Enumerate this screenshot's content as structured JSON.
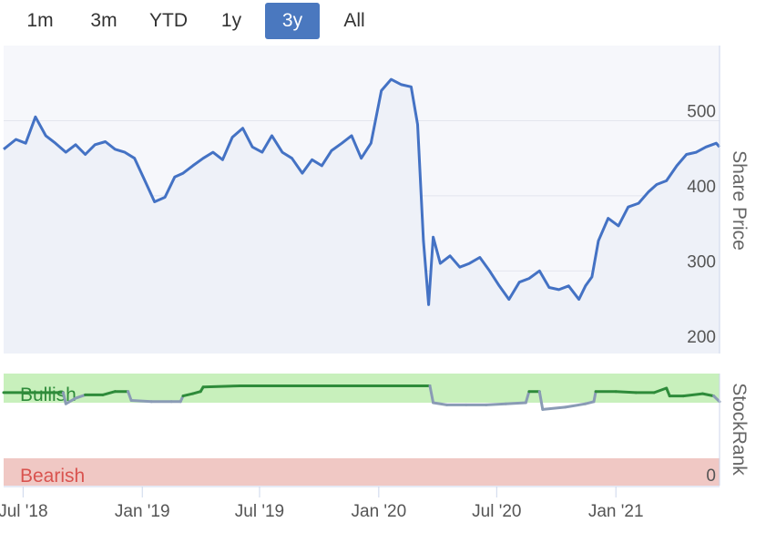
{
  "range_selector": {
    "buttons": [
      {
        "label": "1m"
      },
      {
        "label": "3m"
      },
      {
        "label": "YTD"
      },
      {
        "label": "1y"
      },
      {
        "label": "3y"
      },
      {
        "label": "All"
      }
    ],
    "active": "3y"
  },
  "colors": {
    "price_line": "#4472c4",
    "rank_bullish": "#2e8b3a",
    "rank_neutral": "#8a9bb5",
    "bullish_zone": "#c8f0bc",
    "bearish_zone": "#f0c8c4",
    "bullish_text": "#2e8b3a",
    "bearish_text": "#d9534f"
  },
  "chart_data": [
    {
      "type": "line",
      "ylabel": "Share Price",
      "ylim": [
        190,
        600
      ],
      "y_ticks": [
        200,
        300,
        400,
        500
      ],
      "x_range": [
        "2018-06-01",
        "2021-06-10"
      ],
      "series": [
        {
          "x": [
            "2018-06-01",
            "2018-06-20",
            "2018-07-05",
            "2018-07-20",
            "2018-08-05",
            "2018-08-20",
            "2018-09-05",
            "2018-09-20",
            "2018-10-05",
            "2018-10-20",
            "2018-11-05",
            "2018-11-20",
            "2018-12-05",
            "2018-12-20",
            "2019-01-05",
            "2019-01-20",
            "2019-02-05",
            "2019-02-20",
            "2019-03-05",
            "2019-03-20",
            "2019-04-05",
            "2019-04-20",
            "2019-05-05",
            "2019-05-20",
            "2019-06-05",
            "2019-06-20",
            "2019-07-05",
            "2019-07-20",
            "2019-08-05",
            "2019-08-20",
            "2019-09-05",
            "2019-09-20",
            "2019-10-05",
            "2019-10-20",
            "2019-11-05",
            "2019-11-20",
            "2019-12-05",
            "2019-12-20",
            "2020-01-05",
            "2020-01-20",
            "2020-02-05",
            "2020-02-20",
            "2020-03-01",
            "2020-03-10",
            "2020-03-18",
            "2020-03-25",
            "2020-04-05",
            "2020-04-20",
            "2020-05-05",
            "2020-05-20",
            "2020-06-05",
            "2020-06-20",
            "2020-07-05",
            "2020-07-20",
            "2020-08-05",
            "2020-08-20",
            "2020-09-05",
            "2020-09-20",
            "2020-10-05",
            "2020-10-20",
            "2020-11-05",
            "2020-11-15",
            "2020-11-25",
            "2020-12-05",
            "2020-12-20",
            "2021-01-05",
            "2021-01-20",
            "2021-02-05",
            "2021-02-20",
            "2021-03-05",
            "2021-03-20",
            "2021-04-05",
            "2021-04-20",
            "2021-05-05",
            "2021-05-20",
            "2021-06-05",
            "2021-06-10"
          ],
          "y": [
            462,
            475,
            470,
            505,
            480,
            470,
            458,
            468,
            455,
            468,
            472,
            462,
            458,
            450,
            420,
            392,
            398,
            425,
            430,
            440,
            450,
            458,
            448,
            478,
            490,
            465,
            458,
            480,
            458,
            450,
            430,
            448,
            440,
            460,
            470,
            480,
            450,
            470,
            540,
            555,
            548,
            545,
            495,
            340,
            255,
            345,
            310,
            320,
            305,
            310,
            318,
            300,
            280,
            262,
            285,
            290,
            300,
            278,
            275,
            280,
            262,
            280,
            292,
            340,
            370,
            360,
            385,
            390,
            405,
            415,
            420,
            440,
            455,
            458,
            465,
            470,
            465
          ]
        }
      ]
    },
    {
      "type": "line",
      "ylabel": "StockRank",
      "y_ticks": [
        0
      ],
      "zones": [
        {
          "label": "Bullish"
        },
        {
          "label": "Bearish"
        }
      ],
      "ylim": [
        0,
        100
      ],
      "series": [
        {
          "x": [
            "2018-06-01",
            "2018-07-15",
            "2018-08-15",
            "2018-09-01",
            "2018-09-05",
            "2018-09-20",
            "2018-10-05",
            "2018-11-01",
            "2018-11-20",
            "2018-12-10",
            "2018-12-15",
            "2019-01-15",
            "2019-02-15",
            "2019-03-01",
            "2019-03-05",
            "2019-03-20",
            "2019-04-01",
            "2019-04-05",
            "2019-06-01",
            "2019-08-01",
            "2019-10-01",
            "2019-12-01",
            "2020-02-01",
            "2020-03-20",
            "2020-03-25",
            "2020-04-15",
            "2020-05-15",
            "2020-06-15",
            "2020-07-15",
            "2020-08-15",
            "2020-08-20",
            "2020-09-05",
            "2020-09-10",
            "2020-10-15",
            "2020-11-15",
            "2020-11-28",
            "2020-12-01",
            "2021-01-01",
            "2021-02-01",
            "2021-03-01",
            "2021-03-20",
            "2021-03-25",
            "2021-04-15",
            "2021-05-15",
            "2021-06-01",
            "2021-06-10"
          ],
          "y": [
            83,
            83,
            83,
            83,
            73,
            78,
            81,
            81,
            84,
            84,
            76,
            75,
            75,
            75,
            80,
            82,
            84,
            88,
            89,
            89,
            89,
            89,
            89,
            89,
            74,
            72,
            72,
            72,
            73,
            74,
            84,
            84,
            68,
            70,
            73,
            75,
            84,
            84,
            83,
            83,
            87,
            80,
            80,
            82,
            80,
            75
          ]
        }
      ]
    }
  ],
  "x_axis": {
    "ticks": [
      {
        "label": "Jul '18",
        "date": "2018-07-01"
      },
      {
        "label": "Jan '19",
        "date": "2019-01-01"
      },
      {
        "label": "Jul '19",
        "date": "2019-07-01"
      },
      {
        "label": "Jan '20",
        "date": "2020-01-01"
      },
      {
        "label": "Jul '20",
        "date": "2020-07-01"
      },
      {
        "label": "Jan '21",
        "date": "2021-01-01"
      }
    ]
  }
}
